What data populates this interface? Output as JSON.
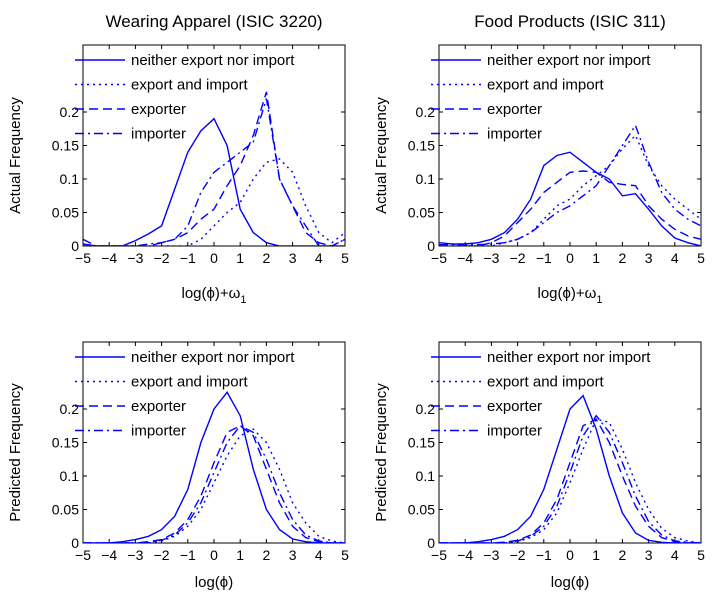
{
  "chart_data": [
    {
      "type": "line",
      "title": "Wearing Apparel (ISIC 3220)",
      "xlabel": "log(ϕ)+ω",
      "xlabel_sub": "1",
      "ylabel": "Actual Frequency",
      "xlim": [
        -5,
        5
      ],
      "ylim": [
        0,
        0.3
      ],
      "xticks": [
        "−5",
        "−4",
        "−3",
        "−2",
        "−1",
        "0",
        "1",
        "2",
        "3",
        "4",
        "5"
      ],
      "yticks": [
        "0",
        "0.05",
        "0.1",
        "0.15",
        "0.2"
      ],
      "legend_position": "top",
      "series": [
        {
          "name": "neither export nor import",
          "style": "solid",
          "x": [
            -5,
            -4.5,
            -4,
            -3.5,
            -3,
            -2.5,
            -2,
            -1.5,
            -1,
            -0.5,
            0,
            0.5,
            1,
            1.5,
            2,
            2.5,
            3,
            3.5,
            4,
            4.5,
            5
          ],
          "y": [
            0.003,
            0,
            0,
            0,
            0.008,
            0.018,
            0.03,
            0.085,
            0.14,
            0.172,
            0.19,
            0.15,
            0.055,
            0.02,
            0.005,
            0,
            0,
            0,
            0,
            0,
            0
          ]
        },
        {
          "name": "export and import",
          "style": "dotted",
          "x": [
            -5,
            -4.5,
            -4,
            -3.5,
            -3,
            -2.5,
            -2,
            -1.5,
            -1,
            -0.5,
            0,
            0.5,
            1,
            1.5,
            2,
            2.5,
            3,
            3.5,
            4,
            4.5,
            5
          ],
          "y": [
            0,
            0,
            0,
            0,
            0,
            0,
            0,
            0,
            0,
            0.01,
            0.03,
            0.05,
            0.065,
            0.1,
            0.125,
            0.13,
            0.11,
            0.06,
            0.02,
            0.005,
            0.02
          ]
        },
        {
          "name": "exporter",
          "style": "dashed",
          "x": [
            -5,
            -4.5,
            -4,
            -3.5,
            -3,
            -2.5,
            -2,
            -1.5,
            -1,
            -0.5,
            0,
            0.5,
            1,
            1.5,
            2,
            2.5,
            3,
            3.5,
            4,
            4.5,
            5
          ],
          "y": [
            0,
            0,
            0,
            0,
            0,
            0,
            0.005,
            0.01,
            0.02,
            0.04,
            0.055,
            0.09,
            0.12,
            0.165,
            0.23,
            0.1,
            0.06,
            0.02,
            0.005,
            0,
            0.01
          ]
        },
        {
          "name": "importer",
          "style": "dashdot",
          "x": [
            -5,
            -4.5,
            -4,
            -3.5,
            -3,
            -2.5,
            -2,
            -1.5,
            -1,
            -0.5,
            0,
            0.5,
            1,
            1.5,
            2,
            2.5,
            3,
            3.5,
            4,
            4.5,
            5
          ],
          "y": [
            0.01,
            0,
            0,
            0,
            0,
            0.003,
            0.005,
            0.01,
            0.03,
            0.08,
            0.11,
            0.125,
            0.14,
            0.155,
            0.22,
            0.1,
            0.06,
            0.03,
            0,
            0,
            0.01
          ]
        }
      ]
    },
    {
      "type": "line",
      "title": "Food Products (ISIC 311)",
      "xlabel": "log(ϕ)+ω",
      "xlabel_sub": "1",
      "ylabel": "Actual Frequency",
      "xlim": [
        -5,
        5
      ],
      "ylim": [
        0,
        0.3
      ],
      "xticks": [
        "−5",
        "−4",
        "−3",
        "−2",
        "−1",
        "0",
        "1",
        "2",
        "3",
        "4",
        "5"
      ],
      "yticks": [
        "0",
        "0.05",
        "0.1",
        "0.15",
        "0.2"
      ],
      "legend_position": "top",
      "series": [
        {
          "name": "neither export nor import",
          "style": "solid",
          "x": [
            -5,
            -4.5,
            -4,
            -3.5,
            -3,
            -2.5,
            -2,
            -1.5,
            -1,
            -0.5,
            0,
            0.5,
            1,
            1.5,
            2,
            2.5,
            3,
            3.5,
            4,
            4.5,
            5
          ],
          "y": [
            0.005,
            0.003,
            0.003,
            0.005,
            0.01,
            0.02,
            0.04,
            0.07,
            0.12,
            0.135,
            0.14,
            0.125,
            0.11,
            0.1,
            0.075,
            0.078,
            0.055,
            0.03,
            0.012,
            0.005,
            0
          ]
        },
        {
          "name": "export and import",
          "style": "dotted",
          "x": [
            -5,
            -4.5,
            -4,
            -3.5,
            -3,
            -2.5,
            -2,
            -1.5,
            -1,
            -0.5,
            0,
            0.5,
            1,
            1.5,
            2,
            2.5,
            3,
            3.5,
            4,
            4.5,
            5
          ],
          "y": [
            0,
            0,
            0,
            0,
            0,
            0.005,
            0.01,
            0.02,
            0.04,
            0.06,
            0.07,
            0.09,
            0.105,
            0.12,
            0.145,
            0.165,
            0.12,
            0.09,
            0.07,
            0.055,
            0.04
          ]
        },
        {
          "name": "exporter",
          "style": "dashed",
          "x": [
            -5,
            -4.5,
            -4,
            -3.5,
            -3,
            -2.5,
            -2,
            -1.5,
            -1,
            -0.5,
            0,
            0.5,
            1,
            1.5,
            2,
            2.5,
            3,
            3.5,
            4,
            4.5,
            5
          ],
          "y": [
            0,
            0,
            0,
            0,
            0.005,
            0.015,
            0.035,
            0.055,
            0.08,
            0.095,
            0.11,
            0.112,
            0.11,
            0.095,
            0.092,
            0.09,
            0.06,
            0.04,
            0.025,
            0.015,
            0.01
          ]
        },
        {
          "name": "importer",
          "style": "dashdot",
          "x": [
            -5,
            -4.5,
            -4,
            -3.5,
            -3,
            -2.5,
            -2,
            -1.5,
            -1,
            -0.5,
            0,
            0.5,
            1,
            1.5,
            2,
            2.5,
            3,
            3.5,
            4,
            4.5,
            5
          ],
          "y": [
            0.002,
            0.002,
            0.002,
            0.002,
            0.003,
            0.005,
            0.01,
            0.02,
            0.035,
            0.05,
            0.06,
            0.075,
            0.09,
            0.12,
            0.15,
            0.18,
            0.125,
            0.08,
            0.055,
            0.04,
            0.03
          ]
        }
      ]
    },
    {
      "type": "line",
      "title": "",
      "xlabel": "log(ϕ)",
      "xlabel_sub": "",
      "ylabel": "Predicted Frequency",
      "xlim": [
        -5,
        5
      ],
      "ylim": [
        0,
        0.3
      ],
      "xticks": [
        "−5",
        "−4",
        "−3",
        "−2",
        "−1",
        "0",
        "1",
        "2",
        "3",
        "4",
        "5"
      ],
      "yticks": [
        "0",
        "0.05",
        "0.1",
        "0.15",
        "0.2"
      ],
      "legend_position": "top",
      "series": [
        {
          "name": "neither export nor import",
          "style": "solid",
          "x": [
            -5,
            -4.5,
            -4,
            -3.5,
            -3,
            -2.5,
            -2,
            -1.5,
            -1,
            -0.5,
            0,
            0.5,
            1,
            1.5,
            2,
            2.5,
            3,
            3.5,
            4,
            4.5,
            5
          ],
          "y": [
            0,
            0,
            0,
            0.002,
            0.005,
            0.01,
            0.02,
            0.04,
            0.08,
            0.15,
            0.2,
            0.225,
            0.19,
            0.11,
            0.05,
            0.02,
            0.006,
            0.002,
            0,
            0,
            0
          ]
        },
        {
          "name": "export and import",
          "style": "dotted",
          "x": [
            -5,
            -4.5,
            -4,
            -3.5,
            -3,
            -2.5,
            -2,
            -1.5,
            -1,
            -0.5,
            0,
            0.5,
            1,
            1.5,
            2,
            2.5,
            3,
            3.5,
            4,
            4.5,
            5
          ],
          "y": [
            0,
            0,
            0,
            0,
            0,
            0,
            0.003,
            0.01,
            0.025,
            0.05,
            0.09,
            0.13,
            0.16,
            0.17,
            0.15,
            0.11,
            0.06,
            0.03,
            0.01,
            0.003,
            0
          ]
        },
        {
          "name": "exporter",
          "style": "dashed",
          "x": [
            -5,
            -4.5,
            -4,
            -3.5,
            -3,
            -2.5,
            -2,
            -1.5,
            -1,
            -0.5,
            0,
            0.5,
            1,
            1.5,
            2,
            2.5,
            3,
            3.5,
            4,
            4.5,
            5
          ],
          "y": [
            0,
            0,
            0,
            0,
            0,
            0.002,
            0.005,
            0.015,
            0.035,
            0.07,
            0.12,
            0.165,
            0.175,
            0.16,
            0.11,
            0.06,
            0.025,
            0.008,
            0.002,
            0,
            0
          ]
        },
        {
          "name": "importer",
          "style": "dashdot",
          "x": [
            -5,
            -4.5,
            -4,
            -3.5,
            -3,
            -2.5,
            -2,
            -1.5,
            -1,
            -0.5,
            0,
            0.5,
            1,
            1.5,
            2,
            2.5,
            3,
            3.5,
            4,
            4.5,
            5
          ],
          "y": [
            0,
            0,
            0,
            0,
            0,
            0.001,
            0.004,
            0.012,
            0.03,
            0.06,
            0.105,
            0.15,
            0.175,
            0.165,
            0.125,
            0.075,
            0.035,
            0.012,
            0.003,
            0,
            0
          ]
        }
      ]
    },
    {
      "type": "line",
      "title": "",
      "xlabel": "log(ϕ)",
      "xlabel_sub": "",
      "ylabel": "Predicted Frequency",
      "xlim": [
        -5,
        5
      ],
      "ylim": [
        0,
        0.3
      ],
      "xticks": [
        "−5",
        "−4",
        "−3",
        "−2",
        "−1",
        "0",
        "1",
        "2",
        "3",
        "4",
        "5"
      ],
      "yticks": [
        "0",
        "0.05",
        "0.1",
        "0.15",
        "0.2"
      ],
      "legend_position": "top",
      "series": [
        {
          "name": "neither export nor import",
          "style": "solid",
          "x": [
            -5,
            -4.5,
            -4,
            -3.5,
            -3,
            -2.5,
            -2,
            -1.5,
            -1,
            -0.5,
            0,
            0.5,
            1,
            1.5,
            2,
            2.5,
            3,
            3.5,
            4,
            4.5,
            5
          ],
          "y": [
            0,
            0,
            0,
            0.002,
            0.005,
            0.01,
            0.02,
            0.04,
            0.08,
            0.14,
            0.2,
            0.22,
            0.17,
            0.1,
            0.045,
            0.015,
            0.004,
            0.001,
            0,
            0,
            0
          ]
        },
        {
          "name": "export and import",
          "style": "dotted",
          "x": [
            -5,
            -4.5,
            -4,
            -3.5,
            -3,
            -2.5,
            -2,
            -1.5,
            -1,
            -0.5,
            0,
            0.5,
            1,
            1.5,
            2,
            2.5,
            3,
            3.5,
            4,
            4.5,
            5
          ],
          "y": [
            0,
            0,
            0,
            0,
            0,
            0,
            0.002,
            0.008,
            0.02,
            0.045,
            0.09,
            0.14,
            0.185,
            0.18,
            0.14,
            0.09,
            0.05,
            0.022,
            0.008,
            0.003,
            0
          ]
        },
        {
          "name": "exporter",
          "style": "dashed",
          "x": [
            -5,
            -4.5,
            -4,
            -3.5,
            -3,
            -2.5,
            -2,
            -1.5,
            -1,
            -0.5,
            0,
            0.5,
            1,
            1.5,
            2,
            2.5,
            3,
            3.5,
            4,
            4.5,
            5
          ],
          "y": [
            0,
            0,
            0,
            0,
            0,
            0.001,
            0.004,
            0.012,
            0.03,
            0.065,
            0.12,
            0.175,
            0.185,
            0.15,
            0.1,
            0.055,
            0.025,
            0.008,
            0.002,
            0,
            0
          ]
        },
        {
          "name": "importer",
          "style": "dashdot",
          "x": [
            -5,
            -4.5,
            -4,
            -3.5,
            -3,
            -2.5,
            -2,
            -1.5,
            -1,
            -0.5,
            0,
            0.5,
            1,
            1.5,
            2,
            2.5,
            3,
            3.5,
            4,
            4.5,
            5
          ],
          "y": [
            0,
            0,
            0,
            0,
            0,
            0.001,
            0.003,
            0.01,
            0.025,
            0.055,
            0.105,
            0.16,
            0.19,
            0.165,
            0.12,
            0.07,
            0.032,
            0.012,
            0.003,
            0.001,
            0
          ]
        }
      ]
    }
  ],
  "colors": {
    "line": "#0000ff",
    "axes": "#000000",
    "background": "#ffffff"
  }
}
